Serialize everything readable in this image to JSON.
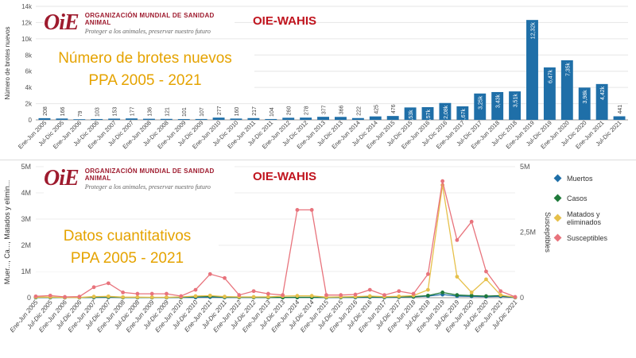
{
  "logo": {
    "mark": "OiE",
    "org": "ORGANIZACIÓN MUNDIAL DE SANIDAD ANIMAL",
    "motto": "Proteger a los animales, preservar nuestro futuro",
    "wahis": "OIE-WAHIS"
  },
  "overlays": {
    "chart1_title": "Número de brotes nuevos",
    "chart1_period": "PPA 2005 - 2021",
    "chart2_title": "Datos cuantitativos",
    "chart2_period": "PPA 2005 - 2021"
  },
  "chart_data": [
    {
      "type": "bar",
      "ylabel": "Número de brotes nuevos",
      "ylim": [
        0,
        14000
      ],
      "yticks": [
        "0",
        "2k",
        "4k",
        "6k",
        "8k",
        "10k",
        "12k",
        "14k"
      ],
      "color": "#1f6fa8",
      "grid": true,
      "categories": [
        "Ene-Jun 2005",
        "Jul-Dic 2005",
        "Ene-Jun 2006",
        "Jul-Dic 2006",
        "Ene-Jun 2007",
        "Jul-Dic 2007",
        "Ene-Jun 2008",
        "Jul-Dic 2008",
        "Ene-Jun 2009",
        "Jul-Dic 2009",
        "Ene-Jun 2010",
        "Jul-Dic 2010",
        "Ene-Jun 2011",
        "Jul-Dic 2011",
        "Ene-Jun 2012",
        "Jul-Dic 2012",
        "Ene-Jun 2013",
        "Jul-Dic 2013",
        "Ene-Jun 2014",
        "Jul-Dic 2014",
        "Ene-Jun 2015",
        "Jul-Dic 2015",
        "Ene-Jun 2016",
        "Jul-Dic 2016",
        "Ene-Jun 2017",
        "Jul-Dic 2017",
        "Ene-Jun 2018",
        "Jul-Dic 2018",
        "Ene-Jun 2019",
        "Jul-Dic 2019",
        "Ene-Jun 2020",
        "Jul-Dic 2020",
        "Ene-Jun 2021",
        "Jul-Dic 2021"
      ],
      "values": [
        208,
        166,
        79,
        103,
        153,
        177,
        136,
        121,
        101,
        107,
        277,
        160,
        217,
        104,
        260,
        278,
        377,
        366,
        222,
        425,
        476,
        1530,
        1570,
        2080,
        1670,
        3250,
        3430,
        3510,
        12320,
        6470,
        7350,
        3980,
        4420,
        441
      ],
      "data_labels": [
        "208",
        "166",
        "79",
        "103",
        "153",
        "177",
        "136",
        "121",
        "101",
        "107",
        "277",
        "160",
        "217",
        "104",
        "260",
        "278",
        "377",
        "366",
        "222",
        "425",
        "476",
        "1,53k",
        "1,57k",
        "2,08k",
        "1,67k",
        "3,25k",
        "3,43k",
        "3,51k",
        "12,32k",
        "6,47k",
        "7,35k",
        "3,98k",
        "4,42k",
        "441"
      ]
    },
    {
      "type": "line",
      "ylabel": "Muer..., Ca..., Matados y elimin...",
      "ylabel_right": "Susceptibles",
      "ylim": [
        0,
        5000000
      ],
      "yticks": [
        "0",
        "1M",
        "2M",
        "3M",
        "4M",
        "5M"
      ],
      "ylim_right": [
        0,
        5000000
      ],
      "yticks_right": [
        "0",
        "2,5M",
        "5M"
      ],
      "grid": true,
      "legend_position": "right",
      "categories": [
        "Ene-Jun 2005",
        "Jul-Dic 2005",
        "Ene-Jun 2006",
        "Jul-Dic 2006",
        "Ene-Jun 2007",
        "Jul-Dic 2007",
        "Ene-Jun 2008",
        "Jul-Dic 2008",
        "Ene-Jun 2009",
        "Jul-Dic 2009",
        "Ene-Jun 2010",
        "Jul-Dic 2010",
        "Ene-Jun 2011",
        "Jul-Dic 2011",
        "Ene-Jun 2012",
        "Jul-Dic 2012",
        "Ene-Jun 2013",
        "Jul-Dic 2013",
        "Ene-Jun 2014",
        "Jul-Dic 2014",
        "Ene-Jun 2015",
        "Jul-Dic 2015",
        "Ene-Jun 2016",
        "Jul-Dic 2016",
        "Ene-Jun 2017",
        "Jul-Dic 2017",
        "Ene-Jun 2018",
        "Jul-Dic 2018",
        "Ene-Jun 2019",
        "Jul-Dic 2019",
        "Ene-Jun 2020",
        "Jul-Dic 2020",
        "Ene-Jun 2021",
        "Jul-Dic 2021"
      ],
      "series": [
        {
          "name": "Muertos",
          "color": "#1f6fa8",
          "axis": "left",
          "values": [
            5000,
            5000,
            3000,
            3000,
            10000,
            15000,
            5000,
            5000,
            4000,
            4000,
            8000,
            10000,
            20000,
            10000,
            8000,
            8000,
            5000,
            5000,
            8000,
            8000,
            4000,
            10000,
            10000,
            20000,
            10000,
            20000,
            30000,
            60000,
            120000,
            60000,
            50000,
            40000,
            50000,
            5000
          ]
        },
        {
          "name": "Casos",
          "color": "#1f7a3a",
          "axis": "left",
          "values": [
            10000,
            12000,
            5000,
            5000,
            20000,
            30000,
            10000,
            10000,
            8000,
            8000,
            15000,
            40000,
            50000,
            20000,
            15000,
            15000,
            10000,
            10000,
            15000,
            15000,
            8000,
            15000,
            20000,
            30000,
            20000,
            30000,
            40000,
            80000,
            200000,
            100000,
            80000,
            60000,
            80000,
            10000
          ]
        },
        {
          "name": "Matados y eliminados",
          "color": "#e6c04a",
          "axis": "left",
          "values": [
            20000,
            25000,
            10000,
            10000,
            40000,
            50000,
            20000,
            20000,
            15000,
            15000,
            30000,
            60000,
            80000,
            40000,
            30000,
            30000,
            30000,
            60000,
            70000,
            70000,
            20000,
            30000,
            40000,
            60000,
            40000,
            50000,
            80000,
            300000,
            4300000,
            800000,
            200000,
            700000,
            100000,
            15000
          ]
        },
        {
          "name": "Susceptibles",
          "color": "#e8737c",
          "axis": "right",
          "values": [
            50000,
            80000,
            30000,
            40000,
            400000,
            550000,
            200000,
            150000,
            150000,
            150000,
            60000,
            300000,
            900000,
            750000,
            100000,
            250000,
            150000,
            100000,
            3350000,
            3350000,
            100000,
            100000,
            120000,
            300000,
            100000,
            250000,
            150000,
            900000,
            4450000,
            2200000,
            2900000,
            1000000,
            250000,
            30000
          ]
        }
      ]
    }
  ]
}
